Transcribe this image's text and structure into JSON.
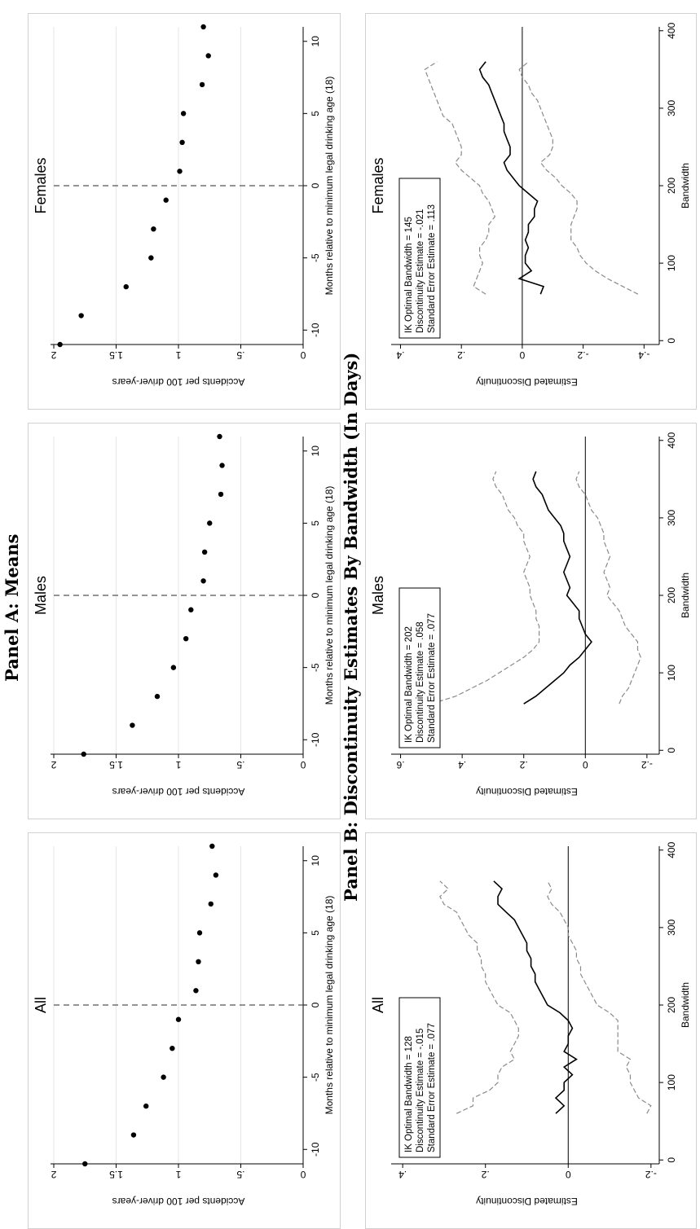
{
  "panel_a_title": "Panel A: Means",
  "panel_b_title": "Panel B: Discontinuity Estimates By Bandwidth (In Days)",
  "chart_data": [
    {
      "type": "scatter",
      "panel": "A",
      "title": "All",
      "xlabel": "Months relative to minimum legal drinking age (18)",
      "ylabel": "Accidents per 100 driver-years",
      "xlim": [
        -11,
        11
      ],
      "ylim": [
        0,
        2
      ],
      "xticks": [
        -10,
        -5,
        0,
        5,
        10
      ],
      "xtick_labels": [
        "-10",
        "-5",
        "0",
        "5",
        "10"
      ],
      "yticks": [
        0,
        0.5,
        1,
        1.5,
        2
      ],
      "ytick_labels": [
        "0",
        ".5",
        "1",
        "1.5",
        "2"
      ],
      "cutoff": 0,
      "grid": "horizontal",
      "x": [
        -11,
        -9,
        -7,
        -5,
        -3,
        -1,
        1,
        3,
        5,
        7,
        9,
        11
      ],
      "y": [
        1.75,
        1.36,
        1.26,
        1.12,
        1.05,
        1.0,
        0.86,
        0.84,
        0.83,
        0.74,
        0.7,
        0.73
      ]
    },
    {
      "type": "scatter",
      "panel": "A",
      "title": "Males",
      "xlabel": "Months relative to minimum legal drinking age (18)",
      "ylabel": "Accidents per 100 driver-years",
      "xlim": [
        -11,
        11
      ],
      "ylim": [
        0,
        2
      ],
      "xticks": [
        -10,
        -5,
        0,
        5,
        10
      ],
      "xtick_labels": [
        "-10",
        "-5",
        "0",
        "5",
        "10"
      ],
      "yticks": [
        0,
        0.5,
        1,
        1.5,
        2
      ],
      "ytick_labels": [
        "0",
        ".5",
        "1",
        "1.5",
        "2"
      ],
      "cutoff": 0,
      "grid": "horizontal",
      "x": [
        -11,
        -9,
        -7,
        -5,
        -3,
        -1,
        1,
        3,
        5,
        7,
        9,
        11
      ],
      "y": [
        1.76,
        1.37,
        1.17,
        1.04,
        0.94,
        0.9,
        0.8,
        0.79,
        0.75,
        0.66,
        0.65,
        0.67
      ]
    },
    {
      "type": "scatter",
      "panel": "A",
      "title": "Females",
      "xlabel": "Months relative to minimum legal drinking age (18)",
      "ylabel": "Accidents per 100 driver-years",
      "xlim": [
        -11,
        11
      ],
      "ylim": [
        0,
        2
      ],
      "xticks": [
        -10,
        -5,
        0,
        5,
        10
      ],
      "xtick_labels": [
        "-10",
        "-5",
        "0",
        "5",
        "10"
      ],
      "yticks": [
        0,
        0.5,
        1,
        1.5,
        2
      ],
      "ytick_labels": [
        "0",
        ".5",
        "1",
        "1.5",
        "2"
      ],
      "cutoff": 0,
      "grid": "horizontal",
      "x": [
        -11,
        -9,
        -7,
        -5,
        -3,
        -1,
        1,
        3,
        5,
        7,
        9,
        11
      ],
      "y": [
        1.95,
        1.78,
        1.42,
        1.22,
        1.2,
        1.1,
        0.99,
        0.97,
        0.96,
        0.81,
        0.76,
        0.8
      ]
    },
    {
      "type": "line",
      "panel": "B",
      "title": "All",
      "xlabel": "Bandwidth",
      "ylabel": "Estimated Discontinuity",
      "xlim": [
        -5,
        405
      ],
      "ylim": [
        -0.22,
        0.42
      ],
      "xticks": [
        0,
        100,
        200,
        300,
        400
      ],
      "xtick_labels": [
        "0",
        "100",
        "200",
        "300",
        "400"
      ],
      "yticks": [
        -0.2,
        0,
        0.2,
        0.4
      ],
      "ytick_labels": [
        "-.2",
        "0",
        ".2",
        ".4"
      ],
      "annotation": [
        "IK Optimal Bandwidth = 128",
        "Discontinuity Estimate = -.015",
        "Standard Error Estimate = .077"
      ],
      "series": [
        {
          "role": "estimate",
          "x": [
            60,
            70,
            80,
            90,
            100,
            110,
            120,
            130,
            140,
            150,
            160,
            170,
            180,
            190,
            200,
            210,
            220,
            230,
            240,
            250,
            260,
            270,
            280,
            290,
            300,
            310,
            320,
            330,
            340,
            350,
            360
          ],
          "y": [
            0.03,
            0.01,
            0.03,
            0.01,
            0.01,
            -0.01,
            0.01,
            -0.02,
            0.01,
            0.0,
            0.0,
            -0.01,
            0.0,
            0.02,
            0.05,
            0.06,
            0.07,
            0.08,
            0.08,
            0.09,
            0.09,
            0.1,
            0.1,
            0.11,
            0.12,
            0.13,
            0.15,
            0.17,
            0.17,
            0.16,
            0.18
          ]
        },
        {
          "role": "upper",
          "x": [
            60,
            70,
            80,
            90,
            100,
            110,
            120,
            130,
            140,
            150,
            160,
            170,
            180,
            190,
            200,
            210,
            220,
            230,
            240,
            250,
            260,
            270,
            280,
            290,
            300,
            310,
            320,
            330,
            340,
            350,
            360
          ],
          "y": [
            0.27,
            0.23,
            0.23,
            0.19,
            0.17,
            0.17,
            0.16,
            0.13,
            0.14,
            0.13,
            0.12,
            0.12,
            0.13,
            0.14,
            0.17,
            0.18,
            0.19,
            0.2,
            0.2,
            0.21,
            0.21,
            0.22,
            0.22,
            0.24,
            0.25,
            0.26,
            0.27,
            0.3,
            0.31,
            0.29,
            0.31
          ]
        },
        {
          "role": "lower",
          "x": [
            60,
            70,
            80,
            90,
            100,
            110,
            120,
            130,
            140,
            150,
            160,
            170,
            180,
            190,
            200,
            210,
            220,
            230,
            240,
            250,
            260,
            270,
            280,
            290,
            300,
            310,
            320,
            330,
            340,
            350,
            360
          ],
          "y": [
            -0.19,
            -0.2,
            -0.17,
            -0.16,
            -0.15,
            -0.15,
            -0.14,
            -0.15,
            -0.12,
            -0.12,
            -0.12,
            -0.12,
            -0.12,
            -0.1,
            -0.07,
            -0.06,
            -0.05,
            -0.04,
            -0.03,
            -0.03,
            -0.02,
            -0.02,
            -0.01,
            0.0,
            0.0,
            0.01,
            0.02,
            0.04,
            0.05,
            0.04,
            0.05
          ]
        }
      ]
    },
    {
      "type": "line",
      "panel": "B",
      "title": "Males",
      "xlabel": "Bandwidth",
      "ylabel": "Estimated Discontinuity",
      "xlim": [
        -5,
        405
      ],
      "ylim": [
        -0.24,
        0.62
      ],
      "xticks": [
        0,
        100,
        200,
        300,
        400
      ],
      "xtick_labels": [
        "0",
        "100",
        "200",
        "300",
        "400"
      ],
      "yticks": [
        -0.2,
        0,
        0.2,
        0.4,
        0.6
      ],
      "ytick_labels": [
        "-.2",
        "0",
        ".2",
        ".4",
        ".6"
      ],
      "annotation": [
        "IK Optimal Bandwidth = 202",
        "Discontinuity Estimate = .058",
        "Standard Error Estimate = .077"
      ],
      "series": [
        {
          "role": "estimate",
          "x": [
            60,
            70,
            80,
            90,
            100,
            110,
            120,
            130,
            140,
            150,
            160,
            170,
            180,
            190,
            200,
            210,
            220,
            230,
            240,
            250,
            260,
            270,
            280,
            290,
            300,
            310,
            320,
            330,
            340,
            350,
            360
          ],
          "y": [
            0.2,
            0.16,
            0.13,
            0.1,
            0.07,
            0.05,
            0.02,
            0.0,
            -0.02,
            0.0,
            0.01,
            0.02,
            0.02,
            0.04,
            0.06,
            0.05,
            0.06,
            0.07,
            0.06,
            0.05,
            0.06,
            0.07,
            0.07,
            0.08,
            0.1,
            0.12,
            0.13,
            0.14,
            0.16,
            0.17,
            0.16
          ]
        },
        {
          "role": "upper",
          "x": [
            60,
            70,
            80,
            90,
            100,
            110,
            120,
            130,
            140,
            150,
            160,
            170,
            180,
            190,
            200,
            210,
            220,
            230,
            240,
            250,
            260,
            270,
            280,
            290,
            300,
            310,
            320,
            330,
            340,
            350,
            360
          ],
          "y": [
            0.5,
            0.42,
            0.37,
            0.32,
            0.28,
            0.24,
            0.2,
            0.17,
            0.15,
            0.15,
            0.15,
            0.16,
            0.16,
            0.17,
            0.18,
            0.18,
            0.19,
            0.2,
            0.19,
            0.18,
            0.19,
            0.2,
            0.2,
            0.22,
            0.23,
            0.25,
            0.26,
            0.27,
            0.29,
            0.3,
            0.29
          ]
        },
        {
          "role": "lower",
          "x": [
            60,
            70,
            80,
            90,
            100,
            110,
            120,
            130,
            140,
            150,
            160,
            170,
            180,
            190,
            200,
            210,
            220,
            230,
            240,
            250,
            260,
            270,
            280,
            290,
            300,
            310,
            320,
            330,
            340,
            350,
            360
          ],
          "y": [
            -0.11,
            -0.12,
            -0.14,
            -0.15,
            -0.16,
            -0.17,
            -0.18,
            -0.17,
            -0.17,
            -0.15,
            -0.13,
            -0.12,
            -0.11,
            -0.09,
            -0.07,
            -0.08,
            -0.07,
            -0.06,
            -0.07,
            -0.08,
            -0.07,
            -0.06,
            -0.06,
            -0.05,
            -0.04,
            -0.02,
            -0.01,
            0.0,
            0.02,
            0.03,
            0.02
          ]
        }
      ]
    },
    {
      "type": "line",
      "panel": "B",
      "title": "Females",
      "xlabel": "Bandwidth",
      "ylabel": "Estimated Discontinuity",
      "xlim": [
        -5,
        405
      ],
      "ylim": [
        -0.45,
        0.42
      ],
      "xticks": [
        0,
        100,
        200,
        300,
        400
      ],
      "xtick_labels": [
        "0",
        "100",
        "200",
        "300",
        "400"
      ],
      "yticks": [
        -0.4,
        -0.2,
        0,
        0.2,
        0.4
      ],
      "ytick_labels": [
        "-.4",
        "-.2",
        "0",
        ".2",
        ".4"
      ],
      "annotation": [
        "IK Optimal Bandwidth = 145",
        "Discontinuity Estimate = -.021",
        "Standard Error Estimate = .113"
      ],
      "series": [
        {
          "role": "estimate",
          "x": [
            60,
            70,
            80,
            90,
            100,
            110,
            120,
            130,
            140,
            150,
            160,
            170,
            180,
            190,
            200,
            210,
            220,
            230,
            240,
            250,
            260,
            270,
            280,
            290,
            300,
            310,
            320,
            330,
            340,
            350,
            360
          ],
          "y": [
            -0.06,
            -0.07,
            0.01,
            -0.03,
            -0.01,
            -0.01,
            -0.02,
            -0.01,
            -0.02,
            -0.02,
            -0.04,
            -0.04,
            -0.05,
            -0.02,
            0.01,
            0.03,
            0.05,
            0.06,
            0.04,
            0.04,
            0.05,
            0.06,
            0.06,
            0.07,
            0.08,
            0.09,
            0.1,
            0.11,
            0.13,
            0.14,
            0.12
          ]
        },
        {
          "role": "upper",
          "x": [
            60,
            70,
            80,
            90,
            100,
            110,
            120,
            130,
            140,
            150,
            160,
            170,
            180,
            190,
            200,
            210,
            220,
            230,
            240,
            250,
            260,
            270,
            280,
            290,
            300,
            310,
            320,
            330,
            340,
            350,
            360
          ],
          "y": [
            0.12,
            0.16,
            0.15,
            0.14,
            0.13,
            0.14,
            0.14,
            0.12,
            0.11,
            0.11,
            0.09,
            0.1,
            0.11,
            0.13,
            0.14,
            0.17,
            0.2,
            0.22,
            0.2,
            0.2,
            0.21,
            0.22,
            0.23,
            0.26,
            0.27,
            0.28,
            0.29,
            0.3,
            0.31,
            0.32,
            0.28
          ]
        },
        {
          "role": "lower",
          "x": [
            60,
            70,
            80,
            90,
            100,
            110,
            120,
            130,
            140,
            150,
            160,
            170,
            180,
            190,
            200,
            210,
            220,
            230,
            240,
            250,
            260,
            270,
            280,
            290,
            300,
            310,
            320,
            330,
            340,
            350,
            360
          ],
          "y": [
            -0.38,
            -0.33,
            -0.28,
            -0.24,
            -0.21,
            -0.19,
            -0.18,
            -0.16,
            -0.16,
            -0.16,
            -0.17,
            -0.18,
            -0.18,
            -0.16,
            -0.13,
            -0.11,
            -0.08,
            -0.06,
            -0.09,
            -0.1,
            -0.1,
            -0.09,
            -0.08,
            -0.07,
            -0.06,
            -0.05,
            -0.03,
            -0.02,
            0.0,
            0.01,
            -0.02
          ]
        }
      ]
    }
  ]
}
